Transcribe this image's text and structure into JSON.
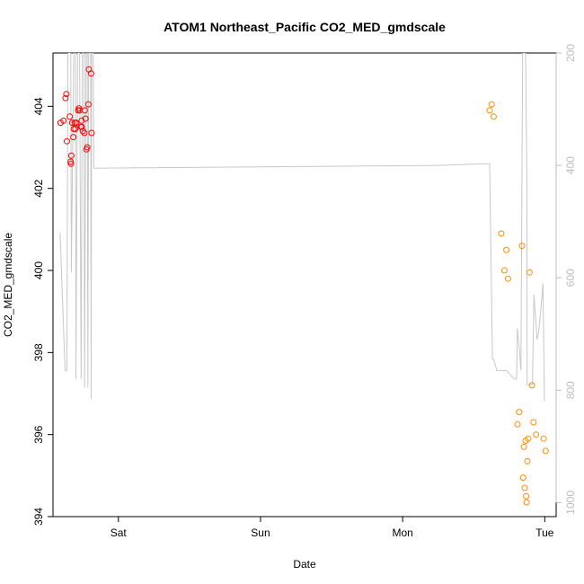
{
  "chart_data": {
    "type": "scatter",
    "title": "ATOM1 Northeast_Pacific CO2_MED_gmdscale",
    "xlabel": "Date",
    "ylabel": "CO2_MED_gmdscale",
    "x_unit": "days since Friday 00:00",
    "xlim": [
      0.54,
      4.08
    ],
    "x_ticks": [
      {
        "value": 1,
        "label": "Sat"
      },
      {
        "value": 2,
        "label": "Sun"
      },
      {
        "value": 3,
        "label": "Mon"
      },
      {
        "value": 4,
        "label": "Tue"
      }
    ],
    "ylim": [
      394,
      405.3
    ],
    "y_ticks": [
      394,
      396,
      398,
      400,
      402,
      404
    ],
    "y2_label": "",
    "y2lim": [
      200,
      1025
    ],
    "y2_ticks": [
      200,
      400,
      600,
      800,
      1000
    ],
    "grid": false,
    "colors": {
      "series1": "#ff0000",
      "series2": "#ff8c00",
      "pressure_line": "#c8c8c8",
      "right_axis": "#bdbdbd"
    },
    "series": [
      {
        "marker": "open-circle",
        "color": "#ff0000",
        "points": [
          [
            0.593,
            403.6
          ],
          [
            0.614,
            403.65
          ],
          [
            0.628,
            404.2
          ],
          [
            0.634,
            404.3
          ],
          [
            0.638,
            403.15
          ],
          [
            0.658,
            403.75
          ],
          [
            0.664,
            402.65
          ],
          [
            0.667,
            402.6
          ],
          [
            0.669,
            402.8
          ],
          [
            0.675,
            403.6
          ],
          [
            0.686,
            403.45
          ],
          [
            0.693,
            403.6
          ],
          [
            0.697,
            403.45
          ],
          [
            0.703,
            403.6
          ],
          [
            0.717,
            403.9
          ],
          [
            0.722,
            403.95
          ],
          [
            0.728,
            403.9
          ],
          [
            0.736,
            403.5
          ],
          [
            0.741,
            403.65
          ],
          [
            0.75,
            403.4
          ],
          [
            0.761,
            403.35
          ],
          [
            0.764,
            403.9
          ],
          [
            0.769,
            403.7
          ],
          [
            0.775,
            402.95
          ],
          [
            0.781,
            403.0
          ],
          [
            0.789,
            404.05
          ],
          [
            0.792,
            404.9
          ],
          [
            0.808,
            404.8
          ],
          [
            0.811,
            403.35
          ],
          [
            0.683,
            403.25
          ],
          [
            0.742,
            403.5
          ]
        ]
      },
      {
        "marker": "open-circle",
        "color": "#ff8c00",
        "points": [
          [
            3.612,
            403.9
          ],
          [
            3.626,
            404.05
          ],
          [
            3.64,
            403.75
          ],
          [
            3.694,
            400.9
          ],
          [
            3.716,
            400.0
          ],
          [
            3.73,
            400.5
          ],
          [
            3.741,
            399.8
          ],
          [
            3.808,
            396.25
          ],
          [
            3.82,
            396.55
          ],
          [
            3.84,
            400.6
          ],
          [
            3.848,
            394.95
          ],
          [
            3.853,
            395.7
          ],
          [
            3.859,
            394.7
          ],
          [
            3.866,
            395.85
          ],
          [
            3.869,
            394.5
          ],
          [
            3.872,
            394.35
          ],
          [
            3.878,
            395.35
          ],
          [
            3.883,
            395.9
          ],
          [
            3.893,
            399.95
          ],
          [
            3.91,
            397.2
          ],
          [
            3.921,
            396.3
          ],
          [
            3.939,
            396.0
          ],
          [
            3.992,
            395.9
          ],
          [
            4.006,
            395.6
          ]
        ]
      },
      {
        "type": "line",
        "axis": "right",
        "color": "#c8c8c8",
        "points": [
          [
            0.59,
            520
          ],
          [
            0.625,
            765
          ],
          [
            0.638,
            765
          ],
          [
            0.644,
            200
          ],
          [
            0.665,
            200
          ],
          [
            0.669,
            590
          ],
          [
            0.686,
            200
          ],
          [
            0.698,
            200
          ],
          [
            0.701,
            780
          ],
          [
            0.713,
            200
          ],
          [
            0.727,
            200
          ],
          [
            0.738,
            780
          ],
          [
            0.746,
            200
          ],
          [
            0.758,
            200
          ],
          [
            0.762,
            795
          ],
          [
            0.772,
            200
          ],
          [
            0.781,
            200
          ],
          [
            0.785,
            795
          ],
          [
            0.791,
            200
          ],
          [
            0.805,
            200
          ],
          [
            0.808,
            815
          ],
          [
            0.812,
            200
          ],
          [
            0.823,
            200
          ],
          [
            0.827,
            405
          ],
          [
            3.245,
            400
          ],
          [
            3.593,
            397
          ],
          [
            3.612,
            397
          ],
          [
            3.632,
            745
          ],
          [
            3.642,
            745
          ],
          [
            3.652,
            755
          ],
          [
            3.662,
            765
          ],
          [
            3.712,
            765
          ],
          [
            3.732,
            765
          ],
          [
            3.785,
            780
          ],
          [
            3.802,
            780
          ],
          [
            3.807,
            690
          ],
          [
            3.822,
            730
          ],
          [
            3.832,
            765
          ],
          [
            3.844,
            200
          ],
          [
            3.865,
            200
          ],
          [
            3.874,
            425
          ],
          [
            3.876,
            790
          ],
          [
            3.887,
            790
          ],
          [
            3.895,
            790
          ],
          [
            3.913,
            790
          ],
          [
            3.924,
            630
          ],
          [
            3.946,
            710
          ],
          [
            3.955,
            700
          ],
          [
            3.971,
            660
          ],
          [
            3.987,
            610
          ],
          [
            3.998,
            820
          ]
        ]
      }
    ]
  }
}
